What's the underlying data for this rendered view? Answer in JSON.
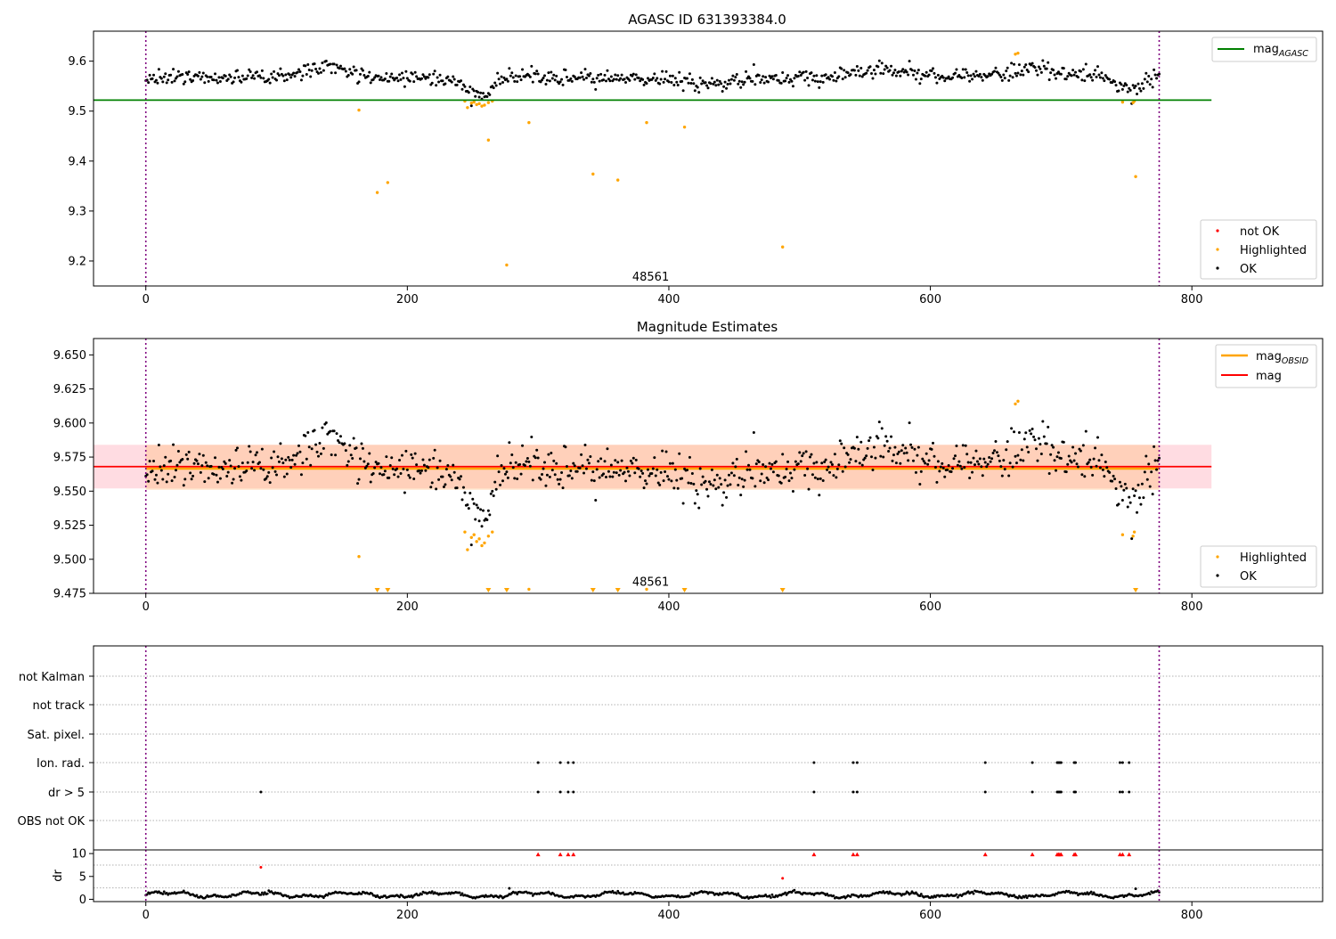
{
  "chart_data": [
    {
      "type": "scatter",
      "title": "AGASC ID 631393384.0",
      "xlim": [
        -40,
        900
      ],
      "ylim": [
        9.15,
        9.66
      ],
      "xticks": [
        0,
        200,
        400,
        600,
        800
      ],
      "yticks": [
        9.2,
        9.3,
        9.4,
        9.5,
        9.6
      ],
      "ytick_labels": [
        "9.2",
        "9.3",
        "9.4",
        "9.5",
        "9.6"
      ],
      "reference_line": {
        "name": "mag_AGASC",
        "label_main": "mag",
        "label_sub": "AGASC",
        "y": 9.522,
        "x_range": [
          -40,
          815
        ],
        "color": "#008000"
      },
      "vlines": {
        "x": [
          0,
          775
        ],
        "color": "#800080"
      },
      "obsid_annotation": {
        "text": "48561",
        "x": 387,
        "y": 9.168
      },
      "highlighted_points": [
        {
          "x": 163,
          "y": 9.502
        },
        {
          "x": 177,
          "y": 9.337
        },
        {
          "x": 185,
          "y": 9.357
        },
        {
          "x": 244,
          "y": 9.52
        },
        {
          "x": 246,
          "y": 9.507
        },
        {
          "x": 249,
          "y": 9.516
        },
        {
          "x": 251,
          "y": 9.518
        },
        {
          "x": 253,
          "y": 9.513
        },
        {
          "x": 255,
          "y": 9.515
        },
        {
          "x": 257,
          "y": 9.51
        },
        {
          "x": 259,
          "y": 9.512
        },
        {
          "x": 262,
          "y": 9.517
        },
        {
          "x": 265,
          "y": 9.52
        },
        {
          "x": 262,
          "y": 9.442
        },
        {
          "x": 276,
          "y": 9.192
        },
        {
          "x": 293,
          "y": 9.477
        },
        {
          "x": 342,
          "y": 9.374
        },
        {
          "x": 361,
          "y": 9.362
        },
        {
          "x": 383,
          "y": 9.477
        },
        {
          "x": 412,
          "y": 9.468
        },
        {
          "x": 487,
          "y": 9.228
        },
        {
          "x": 665,
          "y": 9.614
        },
        {
          "x": 667,
          "y": 9.616
        },
        {
          "x": 747,
          "y": 9.518
        },
        {
          "x": 755,
          "y": 9.517
        },
        {
          "x": 756,
          "y": 9.52
        },
        {
          "x": 757,
          "y": 9.369
        }
      ],
      "legend": {
        "position": "lower-right",
        "entries": [
          {
            "label": "not OK",
            "color": "#ff0000"
          },
          {
            "label": "Highlighted",
            "color": "#ffa500"
          },
          {
            "label": "OK",
            "color": "#000000"
          }
        ]
      },
      "ok_series": {
        "x_range": [
          0,
          775
        ],
        "count": 775,
        "color": "#000000"
      }
    },
    {
      "type": "scatter",
      "title": "Magnitude Estimates",
      "xlim": [
        -40,
        900
      ],
      "ylim": [
        9.475,
        9.662
      ],
      "xticks": [
        0,
        200,
        400,
        600,
        800
      ],
      "yticks": [
        9.475,
        9.5,
        9.525,
        9.55,
        9.575,
        9.6,
        9.625,
        9.65
      ],
      "ytick_labels": [
        "9.475",
        "9.500",
        "9.525",
        "9.550",
        "9.575",
        "9.600",
        "9.625",
        "9.650"
      ],
      "mag_obsid": {
        "label_main": "mag",
        "label_sub": "OBSID",
        "y": 9.5665,
        "band": [
          9.551,
          9.584
        ],
        "x_range": [
          0,
          775
        ],
        "color": "#ffa500"
      },
      "mag": {
        "label": "mag",
        "y": 9.568,
        "band": [
          9.552,
          9.584
        ],
        "x_range": [
          -40,
          815
        ],
        "color": "#ff0000"
      },
      "vlines": {
        "x": [
          0,
          775
        ],
        "color": "#800080"
      },
      "obsid_annotation": {
        "text": "48561",
        "x": 387,
        "y": 9.482
      },
      "highlighted_points": [
        {
          "x": 163,
          "y": 9.502
        },
        {
          "x": 244,
          "y": 9.52
        },
        {
          "x": 246,
          "y": 9.507
        },
        {
          "x": 249,
          "y": 9.516
        },
        {
          "x": 251,
          "y": 9.518
        },
        {
          "x": 253,
          "y": 9.513
        },
        {
          "x": 255,
          "y": 9.515
        },
        {
          "x": 257,
          "y": 9.51
        },
        {
          "x": 259,
          "y": 9.512
        },
        {
          "x": 262,
          "y": 9.517
        },
        {
          "x": 265,
          "y": 9.52
        },
        {
          "x": 293,
          "y": 9.478
        },
        {
          "x": 383,
          "y": 9.478
        },
        {
          "x": 665,
          "y": 9.614
        },
        {
          "x": 667,
          "y": 9.616
        },
        {
          "x": 747,
          "y": 9.518
        },
        {
          "x": 755,
          "y": 9.517
        },
        {
          "x": 756,
          "y": 9.52
        }
      ],
      "offscale_points_x": [
        177,
        185,
        262,
        276,
        342,
        361,
        412,
        487,
        757
      ],
      "legend_top": {
        "position": "upper-right",
        "entries": [
          {
            "label": "mag_OBSID",
            "color": "#ffa500"
          },
          {
            "label": "mag",
            "color": "#ff0000"
          }
        ]
      },
      "legend_bottom": {
        "position": "lower-right",
        "entries": [
          {
            "label": "Highlighted",
            "color": "#ffa500"
          },
          {
            "label": "OK",
            "color": "#000000"
          }
        ]
      },
      "ok_series": {
        "x_range": [
          0,
          775
        ],
        "count": 775,
        "color": "#000000"
      }
    },
    {
      "type": "scatter",
      "title": "",
      "xlim": [
        -40,
        900
      ],
      "xticks": [
        0,
        200,
        400,
        600,
        800
      ],
      "flag_labels": [
        "not Kalman",
        "not track",
        "Sat. pixel.",
        "Ion. rad.",
        "dr > 5",
        "OBS not OK"
      ],
      "ion_rad_x": [
        300,
        317,
        323,
        327,
        511,
        541,
        544,
        642,
        678,
        697,
        698,
        699,
        700,
        710,
        711,
        745,
        747,
        752
      ],
      "dr_gt5_x": [
        88,
        300,
        317,
        323,
        327,
        511,
        541,
        544,
        642,
        678,
        697,
        698,
        699,
        700,
        710,
        711,
        745,
        747,
        752
      ],
      "vlines": {
        "x": [
          0,
          775
        ],
        "color": "#800080"
      }
    },
    {
      "type": "scatter",
      "ylabel": "dr",
      "xlim": [
        -40,
        900
      ],
      "ylim": [
        -0.5,
        10.8
      ],
      "xticks": [
        0,
        200,
        400,
        600,
        800
      ],
      "yticks": [
        0,
        5,
        10
      ],
      "ytick_labels": [
        "0",
        "5",
        "10"
      ],
      "red_points_x": [
        300,
        317,
        323,
        327,
        511,
        541,
        544,
        642,
        678,
        697,
        698,
        699,
        700,
        710,
        711,
        745,
        747,
        752
      ],
      "red_points_y": 9.8,
      "outliers": [
        {
          "x": 88,
          "y": 7.0,
          "color": "#ff0000"
        },
        {
          "x": 487,
          "y": 4.6,
          "color": "#ff0000"
        },
        {
          "x": 278,
          "y": 2.4,
          "color": "#000000"
        },
        {
          "x": 757,
          "y": 2.3,
          "color": "#000000"
        }
      ],
      "dr_series": {
        "x_range": [
          0,
          775
        ],
        "count": 775,
        "color": "#000000"
      },
      "vlines": {
        "x": [
          0,
          775
        ],
        "color": "#800080"
      }
    }
  ]
}
